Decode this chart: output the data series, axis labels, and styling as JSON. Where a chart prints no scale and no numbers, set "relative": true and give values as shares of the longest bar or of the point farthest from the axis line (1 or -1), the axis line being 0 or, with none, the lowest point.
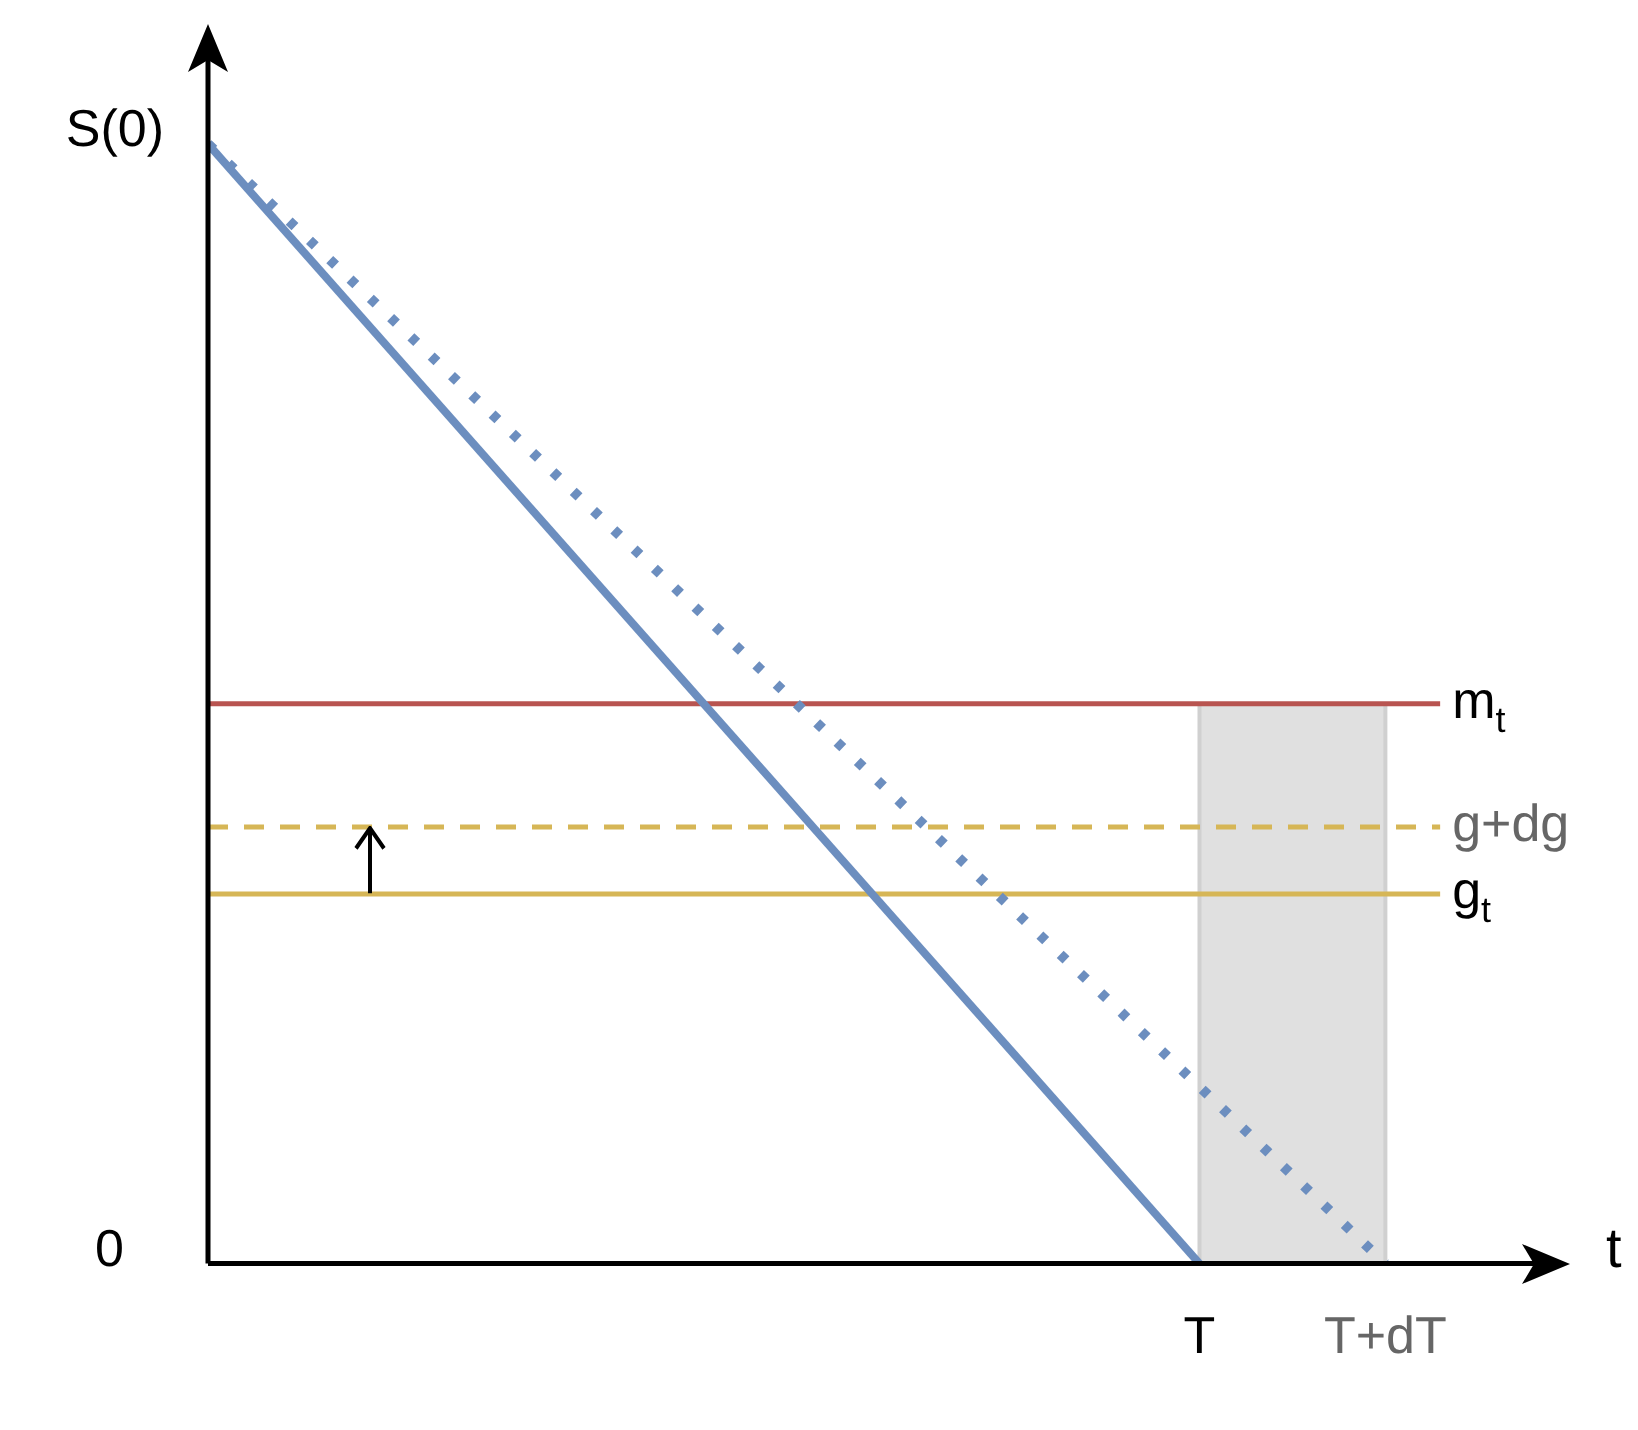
{
  "chart_data": {
    "type": "line",
    "relative": true,
    "xlabel": "t",
    "legend": false,
    "marker": "none",
    "categories": [
      null,
      null,
      null,
      null,
      null,
      null,
      null,
      null,
      null,
      null,
      null,
      null,
      null,
      null,
      null,
      null,
      "T",
      null,
      null,
      "T+dT"
    ],
    "series": [
      {
        "color": "#6c8ebf",
        "values": [
          1,
          null,
          null,
          null,
          null,
          null,
          null,
          null,
          null,
          null,
          null,
          null,
          null,
          null,
          null,
          null,
          0,
          null,
          null,
          null
        ],
        "line_style": "solid"
      },
      {
        "color": "#6c8ebf",
        "values": [
          1,
          null,
          null,
          null,
          null,
          null,
          null,
          null,
          null,
          null,
          null,
          null,
          null,
          null,
          null,
          null,
          null,
          null,
          null,
          0
        ],
        "line_style": "dotted"
      }
    ],
    "ref_lines": [
      {
        "axis": "y",
        "value": 0.5,
        "label": "m$_{t}$",
        "color": "#b85450",
        "line_style": "solid"
      },
      {
        "axis": "y",
        "value": 0.39,
        "label": "g+dg",
        "color": "#d6b656",
        "line_style": "dashed"
      },
      {
        "axis": "y",
        "value": 0.33,
        "label": "g$_{t}$",
        "color": "#d6b656",
        "line_style": "solid"
      }
    ],
    "bands": [
      {
        "axis": "x",
        "from": "T",
        "to": "T+dT",
        "color": "#e0e0e0"
      }
    ],
    "annotations": [
      "S(0)",
      "0"
    ]
  }
}
